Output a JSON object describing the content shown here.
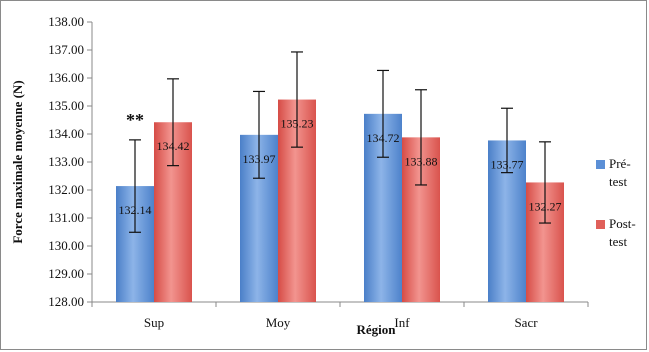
{
  "chart_data": {
    "type": "bar",
    "title": "",
    "xlabel": "Région",
    "ylabel": "Force maximale moyenne (N)",
    "ylim": [
      128,
      138
    ],
    "ytick_step": 1,
    "ytick_labels": [
      "128.00",
      "129.00",
      "130.00",
      "131.00",
      "132.00",
      "133.00",
      "134.00",
      "135.00",
      "136.00",
      "137.00",
      "138.00"
    ],
    "categories": [
      "Sup",
      "Moy",
      "Inf",
      "Sacr"
    ],
    "series": [
      {
        "name": "Pré-test",
        "legend_lines": [
          "Pré-",
          "test"
        ],
        "color": "#5b8fd6",
        "values": [
          132.14,
          133.97,
          134.72,
          133.77
        ],
        "value_labels": [
          "132.14",
          "133.97",
          "134.72",
          "133.77"
        ],
        "error": [
          1.65,
          1.55,
          1.55,
          1.15
        ]
      },
      {
        "name": "Post-test",
        "legend_lines": [
          "Post-",
          "test"
        ],
        "color": "#e0605a",
        "values": [
          134.42,
          135.23,
          133.88,
          132.27
        ],
        "value_labels": [
          "134.42",
          "135.23",
          "133.88",
          "132.27"
        ],
        "error": [
          1.55,
          1.7,
          1.7,
          1.45
        ]
      }
    ],
    "annotations": [
      {
        "text": "**",
        "category": "Sup"
      }
    ],
    "grid": false,
    "legend_position": "right"
  }
}
